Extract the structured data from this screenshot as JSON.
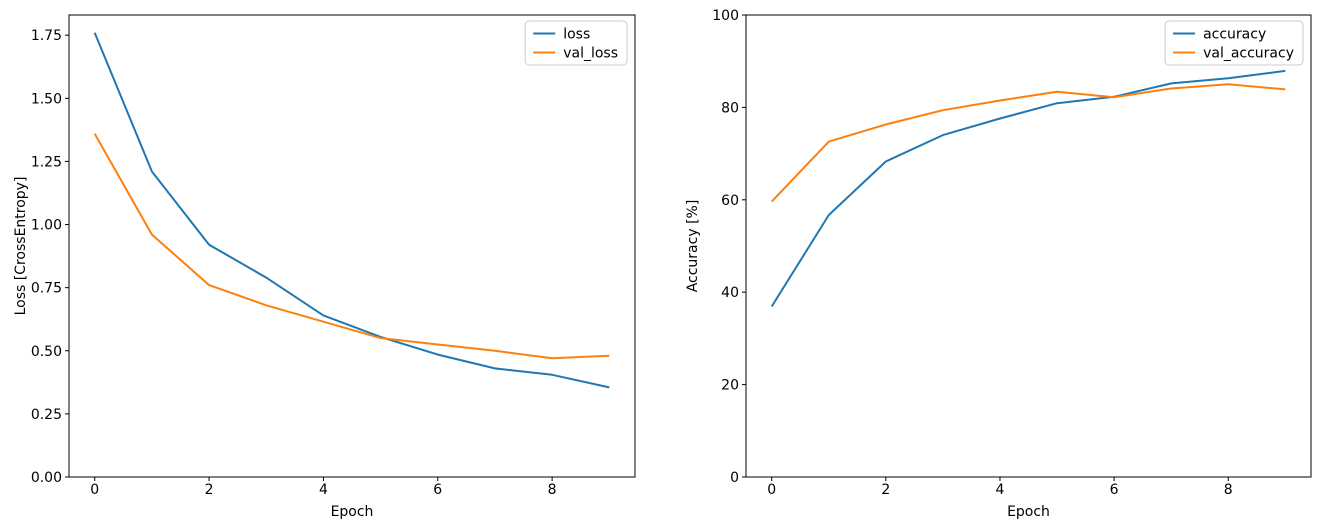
{
  "figure": {
    "background": "#ffffff"
  },
  "colors": {
    "series_blue": "#1f77b4",
    "series_orange": "#ff7f0e",
    "axis": "#000000",
    "legend_border": "#cccccc",
    "legend_fill": "#ffffff"
  },
  "chart_data": [
    {
      "type": "line",
      "title": "",
      "xlabel": "Epoch",
      "ylabel": "Loss [CrossEntropy]",
      "x": [
        0,
        1,
        2,
        3,
        4,
        5,
        6,
        7,
        8,
        9
      ],
      "series": [
        {
          "name": "loss",
          "color": "#1f77b4",
          "values": [
            1.76,
            1.21,
            0.92,
            0.79,
            0.64,
            0.555,
            0.485,
            0.43,
            0.405,
            0.355
          ]
        },
        {
          "name": "val_loss",
          "color": "#ff7f0e",
          "values": [
            1.36,
            0.96,
            0.76,
            0.68,
            0.615,
            0.55,
            0.525,
            0.5,
            0.47,
            0.48
          ]
        }
      ],
      "xlim": [
        -0.45,
        9.45
      ],
      "ylim": [
        0,
        1.83
      ],
      "xticks": {
        "values": [
          0,
          2,
          4,
          6,
          8
        ],
        "labels": [
          "0",
          "2",
          "4",
          "6",
          "8"
        ]
      },
      "yticks": {
        "values": [
          0,
          0.25,
          0.5,
          0.75,
          1.0,
          1.25,
          1.5,
          1.75
        ],
        "labels": [
          "0.00",
          "0.25",
          "0.50",
          "0.75",
          "1.00",
          "1.25",
          "1.50",
          "1.75"
        ]
      },
      "legend": {
        "position": "upper right",
        "entries": [
          "loss",
          "val_loss"
        ]
      },
      "grid": false
    },
    {
      "type": "line",
      "title": "",
      "xlabel": "Epoch",
      "ylabel": "Accuracy [%]",
      "x": [
        0,
        1,
        2,
        3,
        4,
        5,
        6,
        7,
        8,
        9
      ],
      "series": [
        {
          "name": "accuracy",
          "color": "#1f77b4",
          "values": [
            36.9,
            56.7,
            68.3,
            74.0,
            77.6,
            80.9,
            82.3,
            85.2,
            86.3,
            87.9
          ]
        },
        {
          "name": "val_accuracy",
          "color": "#ff7f0e",
          "values": [
            59.6,
            72.6,
            76.3,
            79.4,
            81.5,
            83.4,
            82.2,
            84.1,
            85.0,
            83.9
          ]
        }
      ],
      "xlim": [
        -0.45,
        9.45
      ],
      "ylim": [
        0,
        100
      ],
      "xticks": {
        "values": [
          0,
          2,
          4,
          6,
          8
        ],
        "labels": [
          "0",
          "2",
          "4",
          "6",
          "8"
        ]
      },
      "yticks": {
        "values": [
          0,
          20,
          40,
          60,
          80,
          100
        ],
        "labels": [
          "0",
          "20",
          "40",
          "60",
          "80",
          "100"
        ]
      },
      "legend": {
        "position": "upper right",
        "entries": [
          "accuracy",
          "val_accuracy"
        ]
      },
      "grid": false
    }
  ]
}
